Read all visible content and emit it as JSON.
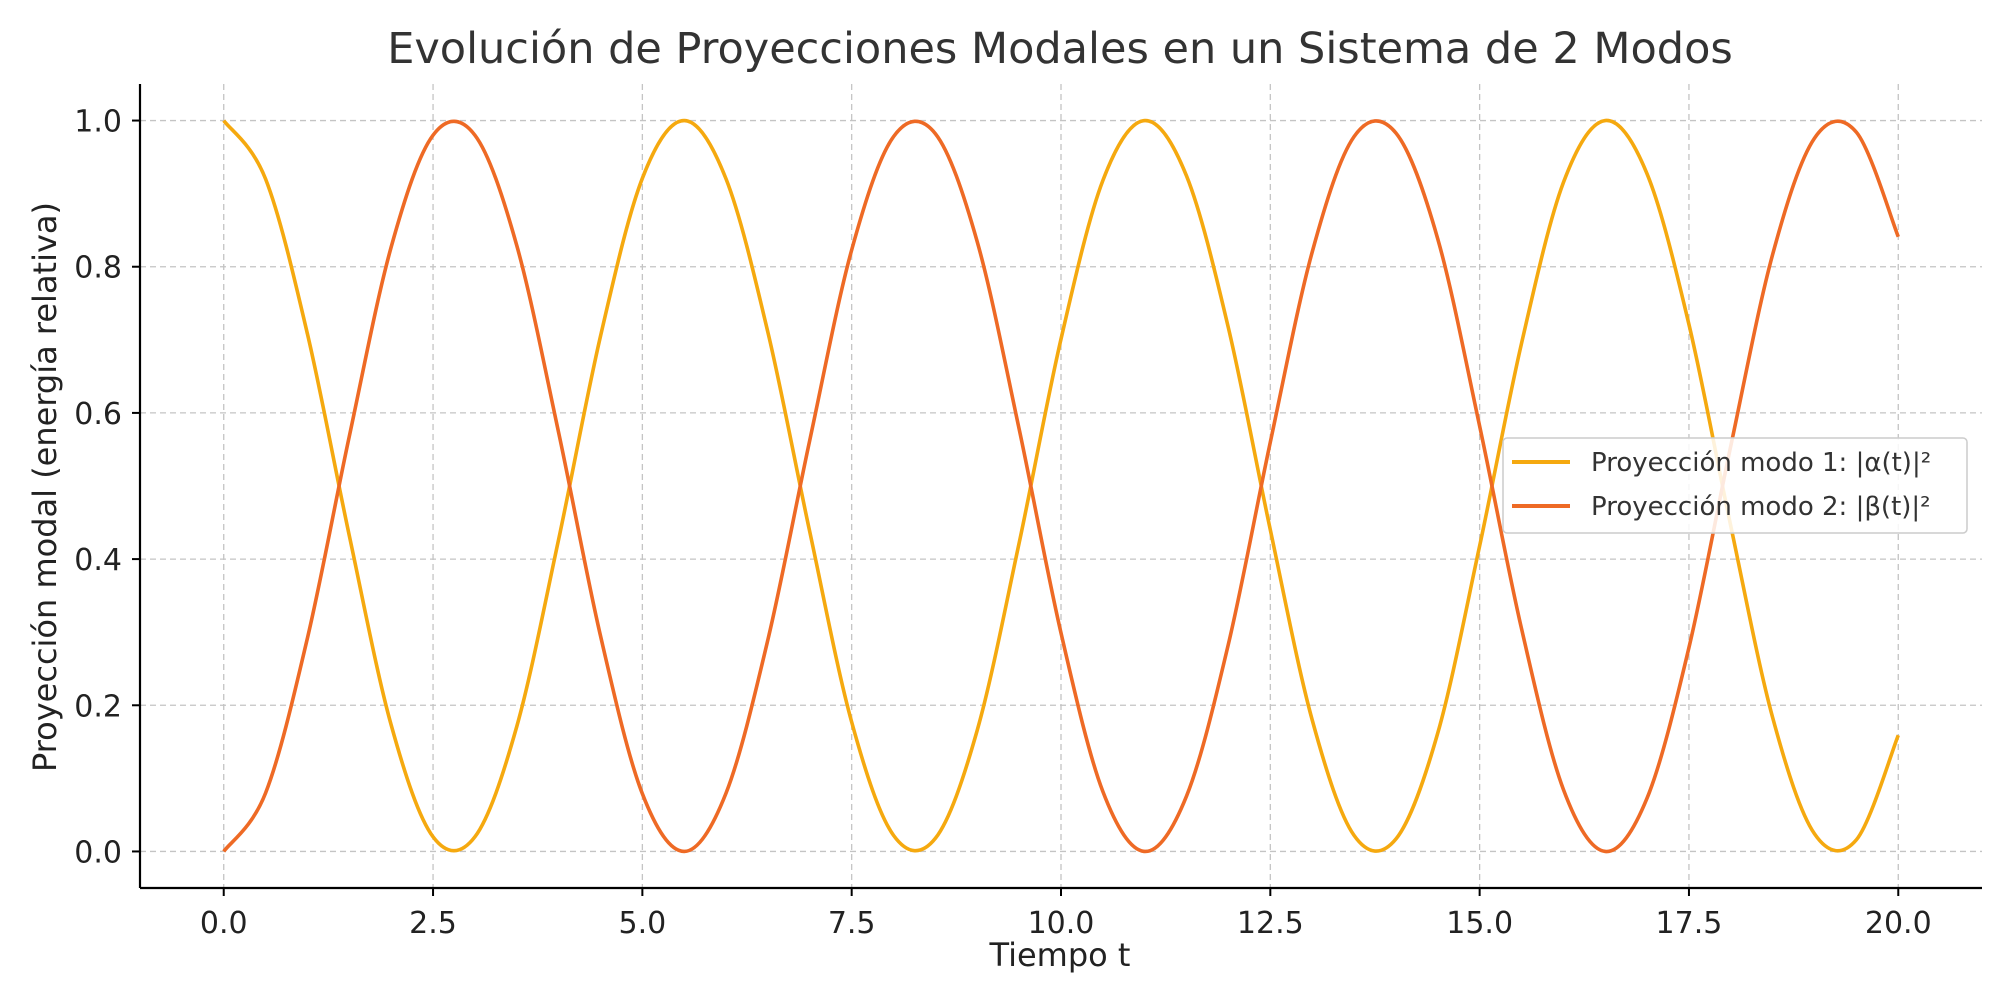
{
  "chart_data": {
    "type": "line",
    "title": "Evolución de Proyecciones Modales en un Sistema de 2 Modos",
    "xlabel": "Tiempo t",
    "ylabel": "Proyección modal (energía relativa)",
    "xlim": [
      -1.0,
      21.0
    ],
    "ylim": [
      -0.05,
      1.05
    ],
    "x_ticks": [
      0.0,
      2.5,
      5.0,
      7.5,
      10.0,
      12.5,
      15.0,
      17.5,
      20.0
    ],
    "x_tick_labels": [
      "0.0",
      "2.5",
      "5.0",
      "7.5",
      "10.0",
      "12.5",
      "15.0",
      "17.5",
      "20.0"
    ],
    "y_ticks": [
      0.0,
      0.2,
      0.4,
      0.6,
      0.8,
      1.0
    ],
    "y_tick_labels": [
      "0.0",
      "0.2",
      "0.4",
      "0.6",
      "0.8",
      "1.0"
    ],
    "grid": true,
    "legend_position": "center-right",
    "x": [
      0.0,
      0.5,
      1.0,
      1.5,
      2.0,
      2.5,
      3.0,
      3.5,
      4.0,
      4.5,
      5.0,
      5.5,
      6.0,
      6.5,
      7.0,
      7.5,
      8.0,
      8.5,
      9.0,
      9.5,
      10.0,
      10.5,
      11.0,
      11.5,
      12.0,
      12.5,
      13.0,
      13.5,
      14.0,
      14.5,
      15.0,
      15.5,
      16.0,
      16.5,
      17.0,
      17.5,
      18.0,
      18.5,
      19.0,
      19.5,
      20.0
    ],
    "series": [
      {
        "name": "Proyección modo 1: |α(t)|²",
        "color": "#F5A90F",
        "values": [
          1.0,
          0.92,
          0.708,
          0.432,
          0.173,
          0.02,
          0.02,
          0.171,
          0.427,
          0.705,
          0.921,
          1.0,
          0.92,
          0.71,
          0.437,
          0.177,
          0.022,
          0.018,
          0.166,
          0.422,
          0.701,
          0.918,
          1.0,
          0.924,
          0.716,
          0.44,
          0.18,
          0.022,
          0.017,
          0.162,
          0.418,
          0.695,
          0.915,
          1.0,
          0.927,
          0.721,
          0.445,
          0.183,
          0.024,
          0.016,
          0.159
        ]
      },
      {
        "name": "Proyección modo 2: |β(t)|²",
        "color": "#EE6A25",
        "values": [
          0.0,
          0.08,
          0.292,
          0.568,
          0.827,
          0.98,
          0.98,
          0.829,
          0.573,
          0.295,
          0.079,
          0.0,
          0.08,
          0.29,
          0.563,
          0.823,
          0.978,
          0.982,
          0.834,
          0.578,
          0.299,
          0.082,
          0.0,
          0.076,
          0.284,
          0.56,
          0.82,
          0.978,
          0.983,
          0.838,
          0.582,
          0.305,
          0.085,
          0.0,
          0.073,
          0.279,
          0.555,
          0.817,
          0.976,
          0.984,
          0.841
        ]
      }
    ]
  }
}
